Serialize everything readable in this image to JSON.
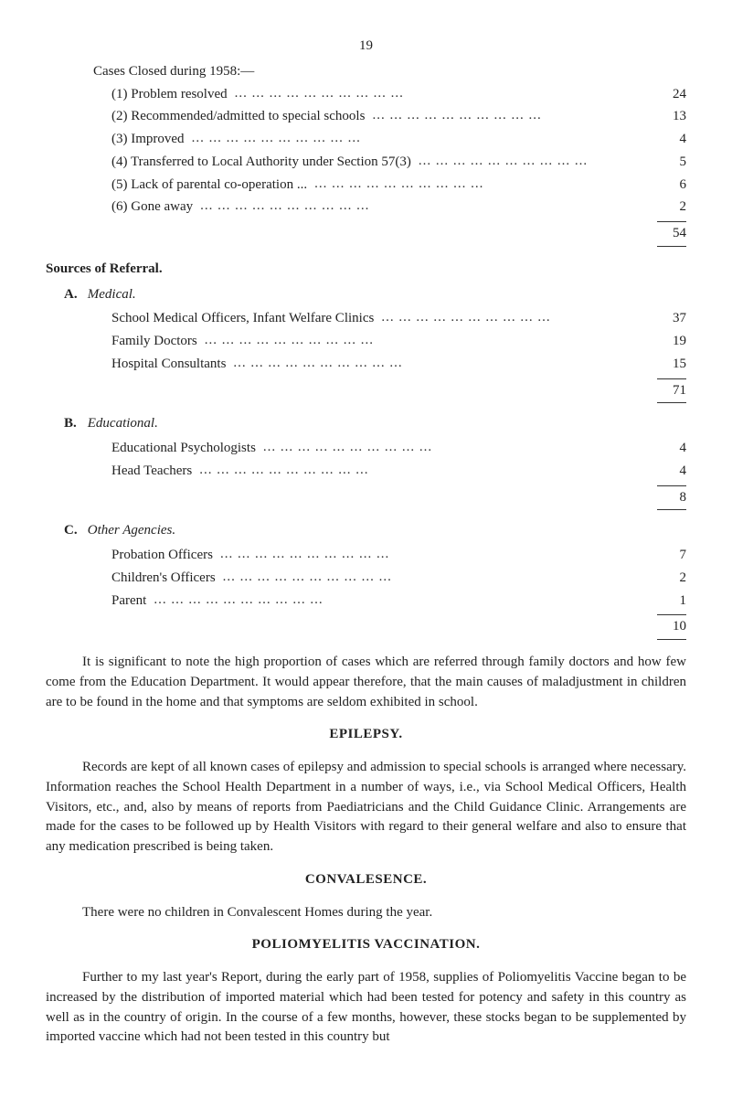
{
  "page_number": "19",
  "cases_closed": {
    "heading": "Cases Closed during 1958:—",
    "items": [
      {
        "label": "(1) Problem resolved",
        "value": "24"
      },
      {
        "label": "(2) Recommended/admitted to special schools",
        "value": "13"
      },
      {
        "label": "(3) Improved",
        "value": "4"
      },
      {
        "label": "(4) Transferred to Local Authority under Section 57(3)",
        "value": "5"
      },
      {
        "label": "(5) Lack of parental co-operation ...",
        "value": "6"
      },
      {
        "label": "(6) Gone away",
        "value": "2"
      }
    ],
    "total": "54"
  },
  "sources": {
    "heading": "Sources of Referral.",
    "groups": [
      {
        "letter": "A.",
        "title": "Medical.",
        "items": [
          {
            "label": "School Medical Officers, Infant Welfare Clinics",
            "value": "37"
          },
          {
            "label": "Family Doctors",
            "value": "19"
          },
          {
            "label": "Hospital Consultants",
            "value": "15"
          }
        ],
        "total": "71"
      },
      {
        "letter": "B.",
        "title": "Educational.",
        "items": [
          {
            "label": "Educational Psychologists",
            "value": "4"
          },
          {
            "label": "Head Teachers",
            "value": "4"
          }
        ],
        "total": "8"
      },
      {
        "letter": "C.",
        "title": "Other Agencies.",
        "items": [
          {
            "label": "Probation Officers",
            "value": "7"
          },
          {
            "label": "Children's Officers",
            "value": "2"
          },
          {
            "label": "Parent",
            "value": "1"
          }
        ],
        "total": "10"
      }
    ]
  },
  "paragraphs": {
    "p1": "It is significant to note the high proportion of cases which are referred through family doctors and how few come from the Education Department. It would appear therefore, that the main causes of maladjustment in children are to be found in the home and that symptoms are seldom exhibited in school.",
    "epilepsy_heading": "EPILEPSY.",
    "p2": "Records are kept of all known cases of epilepsy and admission to special schools is arranged where necessary. Information reaches the School Health Department in a number of ways, i.e., via School Medical Officers, Health Visitors, etc., and, also by means of reports from Paediatricians and the Child Guidance Clinic. Arrangements are made for the cases to be followed up by Health Visitors with regard to their general welfare and also to ensure that any medication prescribed is being taken.",
    "convalesence_heading": "CONVALESENCE.",
    "p3": "There were no children in Convalescent Homes during the year.",
    "polio_heading": "POLIOMYELITIS VACCINATION.",
    "p4": "Further to my last year's Report, during the early part of 1958, supplies of Poliomyelitis Vaccine began to be increased by the distribution of imported material which had been tested for potency and safety in this country as well as in the country of origin. In the course of a few months, however, these stocks began to be supplemented by imported vaccine which had not been tested in this country but"
  }
}
